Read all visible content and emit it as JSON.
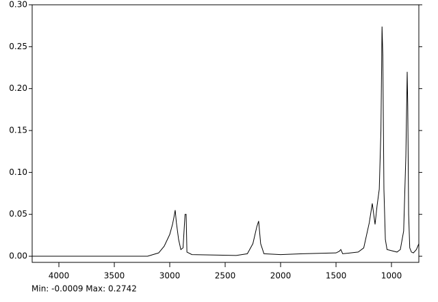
{
  "chart_data": {
    "type": "line",
    "x": [
      4241,
      3600,
      3200,
      3100,
      3050,
      3000,
      2975,
      2960,
      2951,
      2940,
      2920,
      2900,
      2880,
      2862,
      2852,
      2845,
      2800,
      2400,
      2300,
      2250,
      2215,
      2198,
      2180,
      2150,
      2000,
      1800,
      1500,
      1470,
      1457,
      1440,
      1300,
      1250,
      1200,
      1173,
      1148,
      1130,
      1110,
      1095,
      1085,
      1078,
      1068,
      1055,
      1040,
      950,
      920,
      890,
      870,
      858,
      853,
      845,
      835,
      820,
      802,
      775,
      753
    ],
    "values": [
      0.0,
      0.0,
      0.0,
      0.004,
      0.012,
      0.026,
      0.038,
      0.048,
      0.055,
      0.04,
      0.02,
      0.008,
      0.01,
      0.05,
      0.05,
      0.005,
      0.002,
      0.001,
      0.003,
      0.015,
      0.035,
      0.042,
      0.015,
      0.003,
      0.002,
      0.003,
      0.004,
      0.006,
      0.008,
      0.003,
      0.005,
      0.01,
      0.04,
      0.063,
      0.038,
      0.06,
      0.08,
      0.15,
      0.274,
      0.24,
      0.08,
      0.02,
      0.008,
      0.005,
      0.008,
      0.03,
      0.12,
      0.22,
      0.18,
      0.05,
      0.01,
      0.005,
      0.004,
      0.008,
      0.015
    ],
    "color": "#000000",
    "xlim": [
      4241,
      753
    ],
    "ylim": [
      -0.0073,
      0.3
    ],
    "xticks": [
      4000,
      3500,
      3000,
      2500,
      2000,
      1500,
      1000
    ],
    "yticks": [
      {
        "value": 0,
        "label": "0.00"
      },
      {
        "value": 0.05,
        "label": "0.05"
      },
      {
        "value": 0.1,
        "label": "0.10"
      },
      {
        "value": 0.15,
        "label": "0.15"
      },
      {
        "value": 0.2,
        "label": "0.20"
      },
      {
        "value": 0.25,
        "label": "0.25"
      },
      {
        "value": 0.3,
        "label": "0.30"
      }
    ],
    "footer": "Min: -0.0009 Max: 0.2742"
  }
}
